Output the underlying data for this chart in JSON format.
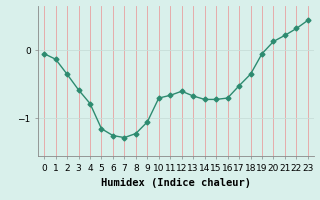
{
  "x": [
    0,
    1,
    2,
    3,
    4,
    5,
    6,
    7,
    8,
    9,
    10,
    11,
    12,
    13,
    14,
    15,
    16,
    17,
    18,
    19,
    20,
    21,
    22,
    23
  ],
  "y": [
    -0.05,
    -0.13,
    -0.35,
    -0.58,
    -0.78,
    -1.15,
    -1.25,
    -1.28,
    -1.22,
    -1.05,
    -0.7,
    -0.66,
    -0.6,
    -0.67,
    -0.72,
    -0.72,
    -0.7,
    -0.52,
    -0.35,
    -0.05,
    0.13,
    0.22,
    0.32,
    0.44
  ],
  "line_color": "#2d8b70",
  "marker": "D",
  "marker_size": 2.5,
  "bg_color": "#d9f0eb",
  "grid_color_v": "#e8a0a0",
  "grid_color_h": "#c8ddd8",
  "xlabel": "Humidex (Indice chaleur)",
  "yticks": [
    -1,
    0
  ],
  "ylim": [
    -1.55,
    0.65
  ],
  "xlim": [
    -0.5,
    23.5
  ],
  "xlabel_fontsize": 7.5,
  "tick_fontsize": 6.5,
  "linewidth": 1.0
}
